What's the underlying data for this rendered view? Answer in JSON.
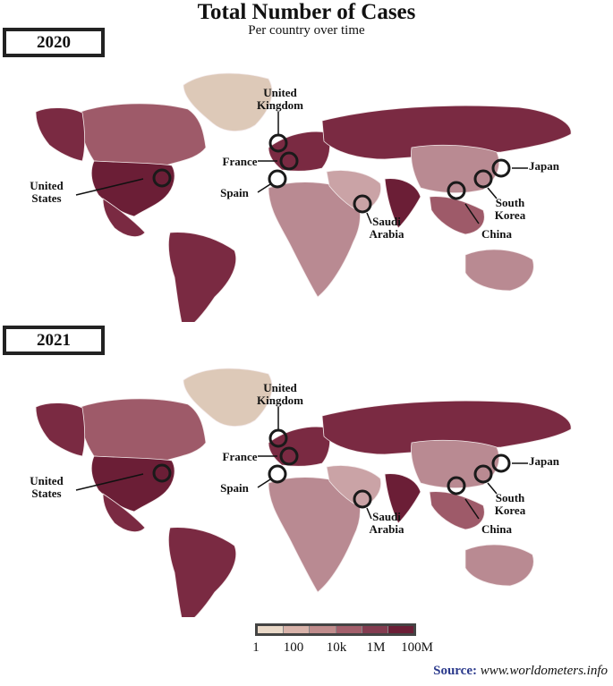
{
  "title": "Total Number of Cases",
  "subtitle": "Per country over time",
  "maps": [
    {
      "year": "2020"
    },
    {
      "year": "2021"
    }
  ],
  "labels": {
    "united_states": [
      "United",
      "States"
    ],
    "united_kingdom": [
      "United",
      "Kingdom"
    ],
    "france": "France",
    "spain": "Spain",
    "saudi_arabia": [
      "Saudi",
      "Arabia"
    ],
    "china": "China",
    "south_korea": [
      "South",
      "Korea"
    ],
    "japan": "Japan"
  },
  "legend": {
    "ticks": [
      "1",
      "100",
      "10k",
      "1M",
      "100M"
    ],
    "colors": [
      "#ead9c8",
      "#d9b3aa",
      "#c08c8c",
      "#a35f6b",
      "#843c50",
      "#6b1e36"
    ]
  },
  "source": {
    "label": "Source:",
    "url": "www.worldometers.info"
  },
  "colors": {
    "greenland": "#ddc9b8",
    "usa": "#6b1e36",
    "india": "#6b1e36",
    "dark": "#7a2a42",
    "mid": "#9e5a69",
    "light": "#b98a92",
    "pale": "#caa3a6"
  }
}
